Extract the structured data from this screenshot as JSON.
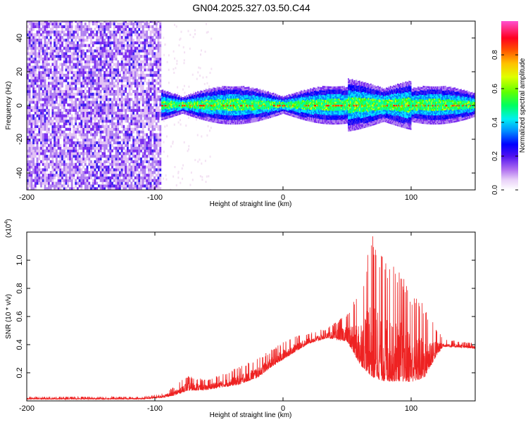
{
  "title": "GN04.2025.327.03.50.C44",
  "colors": {
    "snr_line": "#ee2222",
    "frame": "#000000",
    "colormap": [
      "#f3e2f3",
      "#e2c2f4",
      "#b080f0",
      "#7a2cf0",
      "#3b1cf0",
      "#0000ff",
      "#0080ff",
      "#00e0ff",
      "#00ff90",
      "#40ff00",
      "#c8ff00",
      "#ffe000",
      "#ff8000",
      "#ff2000",
      "#ff0060",
      "#ff40c0"
    ]
  },
  "chart_data": [
    {
      "type": "heatmap",
      "title": "GN04.2025.327.03.50.C44",
      "xlabel": "Height of straight line (km)",
      "ylabel": "Frequency (Hz)",
      "xlim": [
        -200,
        150
      ],
      "ylim": [
        -50,
        50
      ],
      "xticks": [
        -200,
        -100,
        0,
        100
      ],
      "yticks": [
        40,
        20,
        0,
        -20,
        -40
      ],
      "grid": false,
      "colorbar": {
        "label": "Normalized spectral amplitude",
        "range": [
          0,
          1
        ],
        "ticks": [
          "0.0",
          "0.2",
          "0.4",
          "0.6",
          "0.8"
        ],
        "tick_values": [
          0.0,
          0.2,
          0.4,
          0.6,
          0.8
        ]
      },
      "regions": [
        {
          "x": [
            -200,
            -95
          ],
          "description": "broadband low-amplitude purple noise across all frequencies"
        },
        {
          "x": [
            -95,
            150
          ],
          "center_freq": 0,
          "description": "narrow band near 0 Hz, green/cyan with red streaks, width about 5-10 Hz"
        }
      ]
    },
    {
      "type": "line",
      "xlabel": "Height of straight line (km)",
      "ylabel": "SNR (10 * v/v)",
      "y_multiplier": "(x10^4)",
      "xlim": [
        -200,
        150
      ],
      "ylim": [
        0,
        1.2
      ],
      "xticks": [
        -200,
        -100,
        0,
        100
      ],
      "yticks": [
        0.2,
        0.4,
        0.6,
        0.8,
        1.0
      ],
      "grid": false,
      "series": [
        {
          "name": "",
          "envelope": {
            "x": [
              -200,
              -110,
              -95,
              -85,
              -75,
              -60,
              -45,
              -35,
              -20,
              -10,
              0,
              10,
              20,
              35,
              50,
              60,
              70,
              80,
              90,
              100,
              110,
              120,
              125,
              150
            ],
            "low": [
              0.01,
              0.01,
              0.02,
              0.03,
              0.06,
              0.07,
              0.09,
              0.1,
              0.15,
              0.22,
              0.28,
              0.34,
              0.4,
              0.44,
              0.4,
              0.2,
              0.05,
              0.04,
              0.05,
              0.06,
              0.1,
              0.3,
              0.38,
              0.37
            ],
            "high": [
              0.03,
              0.03,
              0.05,
              0.1,
              0.18,
              0.15,
              0.2,
              0.24,
              0.3,
              0.36,
              0.42,
              0.46,
              0.48,
              0.52,
              0.62,
              0.78,
              1.2,
              1.0,
              0.95,
              0.8,
              0.7,
              0.52,
              0.44,
              0.41
            ]
          }
        }
      ]
    }
  ],
  "labels": {
    "top_y_ticks": [
      "40",
      "20",
      "0",
      "-20",
      "-40"
    ],
    "x_ticks": [
      "-200",
      "-100",
      "0",
      "100"
    ],
    "bottom_y_ticks": [
      "0.2",
      "0.4",
      "0.6",
      "0.8",
      "1.0"
    ]
  }
}
